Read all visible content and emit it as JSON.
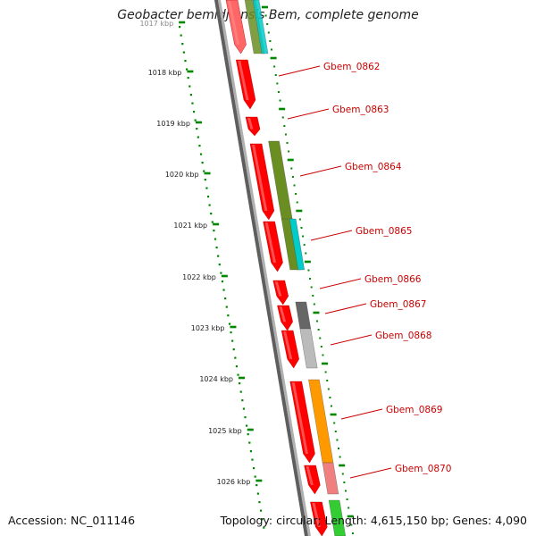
{
  "title": "Geobacter bemidjiensis Bem, complete genome",
  "footer": {
    "accession": "Accession: NC_011146",
    "summary": "Topology: circular; Length: 4,615,150 bp; Genes: 4,090"
  },
  "colors": {
    "forward_gene": "#ff0000",
    "label": "#cc0000",
    "scale_dots": "#008800",
    "backbone": "#777777"
  },
  "scale_ticks": [
    {
      "label": "1017 kbp"
    },
    {
      "label": "1018 kbp"
    },
    {
      "label": "1019 kbp"
    },
    {
      "label": "1020 kbp"
    },
    {
      "label": "1021 kbp"
    },
    {
      "label": "1022 kbp"
    },
    {
      "label": "1023 kbp"
    },
    {
      "label": "1024 kbp"
    },
    {
      "label": "1025 kbp"
    },
    {
      "label": "1026 kbp"
    }
  ],
  "genes": [
    {
      "label": ""
    },
    {
      "label": "Gbem_0862"
    },
    {
      "label": "Gbem_0863"
    },
    {
      "label": "Gbem_0864"
    },
    {
      "label": "Gbem_0865"
    },
    {
      "label": "Gbem_0866"
    },
    {
      "label": "Gbem_0867"
    },
    {
      "label": "Gbem_0868"
    },
    {
      "label": "Gbem_0869"
    },
    {
      "label": "Gbem_0870"
    },
    {
      "label": ""
    }
  ],
  "feature_colors": {
    "olive": "#6b8e23",
    "cyan": "#00cccc",
    "dark_gray": "#666666",
    "light_gray": "#bbbbbb",
    "orange": "#ff9900",
    "pink": "#f08080",
    "green": "#33cc33"
  }
}
